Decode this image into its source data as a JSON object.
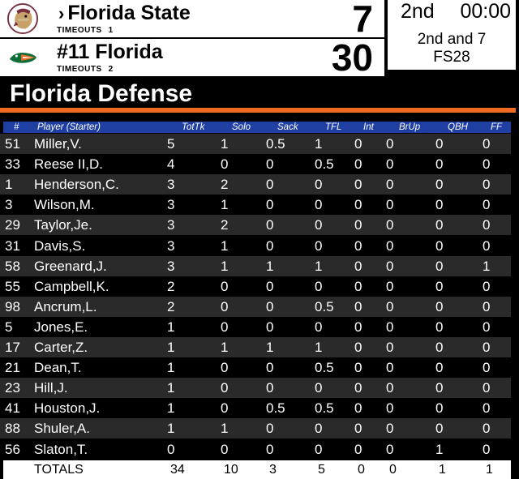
{
  "scoreboard": {
    "home": {
      "possession_icon": "chevron-right-icon",
      "possession_glyph": "›",
      "name": "Florida State",
      "timeouts_label": "TIMEOUTS",
      "timeouts": "1",
      "score": "7",
      "logo": "seminole-head-icon",
      "color": "#782f40"
    },
    "away": {
      "name": "#11 Florida",
      "timeouts_label": "TIMEOUTS",
      "timeouts": "2",
      "score": "30",
      "logo": "gator-icon",
      "color": "#0f6d3a"
    },
    "quarter": "2nd",
    "clock": "00:00",
    "down_distance": "2nd and 7",
    "spot": "FS28"
  },
  "section_title": "Florida Defense",
  "colors": {
    "accent_rule": "#ef6a23",
    "header_bar": "#1f3fa3",
    "alt_row": "#2a2a2a"
  },
  "table": {
    "headers": {
      "num": "#",
      "player": "Player (Starter)",
      "tottk": "TotTk",
      "solo": "Solo",
      "sack": "Sack",
      "tfl": "TFL",
      "int": "Int",
      "brup": "BrUp",
      "qbh": "QBH",
      "ff": "FF"
    },
    "rows": [
      {
        "num": "51",
        "name": "Miller,V.",
        "tottk": "5",
        "solo": "1",
        "sack": "0.5",
        "tfl": "1",
        "int": "0",
        "brup": "0",
        "qbh": "0",
        "ff": "0"
      },
      {
        "num": "33",
        "name": "Reese II,D.",
        "tottk": "4",
        "solo": "0",
        "sack": "0",
        "tfl": "0.5",
        "int": "0",
        "brup": "0",
        "qbh": "0",
        "ff": "0"
      },
      {
        "num": "1",
        "name": "Henderson,C.",
        "tottk": "3",
        "solo": "2",
        "sack": "0",
        "tfl": "0",
        "int": "0",
        "brup": "0",
        "qbh": "0",
        "ff": "0"
      },
      {
        "num": "3",
        "name": "Wilson,M.",
        "tottk": "3",
        "solo": "1",
        "sack": "0",
        "tfl": "0",
        "int": "0",
        "brup": "0",
        "qbh": "0",
        "ff": "0"
      },
      {
        "num": "29",
        "name": "Taylor,Je.",
        "tottk": "3",
        "solo": "2",
        "sack": "0",
        "tfl": "0",
        "int": "0",
        "brup": "0",
        "qbh": "0",
        "ff": "0"
      },
      {
        "num": "31",
        "name": "Davis,S.",
        "tottk": "3",
        "solo": "1",
        "sack": "0",
        "tfl": "0",
        "int": "0",
        "brup": "0",
        "qbh": "0",
        "ff": "0"
      },
      {
        "num": "58",
        "name": "Greenard,J.",
        "tottk": "3",
        "solo": "1",
        "sack": "1",
        "tfl": "1",
        "int": "0",
        "brup": "0",
        "qbh": "0",
        "ff": "1"
      },
      {
        "num": "55",
        "name": "Campbell,K.",
        "tottk": "2",
        "solo": "0",
        "sack": "0",
        "tfl": "0",
        "int": "0",
        "brup": "0",
        "qbh": "0",
        "ff": "0"
      },
      {
        "num": "98",
        "name": "Ancrum,L.",
        "tottk": "2",
        "solo": "0",
        "sack": "0",
        "tfl": "0.5",
        "int": "0",
        "brup": "0",
        "qbh": "0",
        "ff": "0"
      },
      {
        "num": "5",
        "name": "Jones,E.",
        "tottk": "1",
        "solo": "0",
        "sack": "0",
        "tfl": "0",
        "int": "0",
        "brup": "0",
        "qbh": "0",
        "ff": "0"
      },
      {
        "num": "17",
        "name": "Carter,Z.",
        "tottk": "1",
        "solo": "1",
        "sack": "1",
        "tfl": "1",
        "int": "0",
        "brup": "0",
        "qbh": "0",
        "ff": "0"
      },
      {
        "num": "21",
        "name": "Dean,T.",
        "tottk": "1",
        "solo": "0",
        "sack": "0",
        "tfl": "0.5",
        "int": "0",
        "brup": "0",
        "qbh": "0",
        "ff": "0"
      },
      {
        "num": "23",
        "name": "Hill,J.",
        "tottk": "1",
        "solo": "0",
        "sack": "0",
        "tfl": "0",
        "int": "0",
        "brup": "0",
        "qbh": "0",
        "ff": "0"
      },
      {
        "num": "41",
        "name": "Houston,J.",
        "tottk": "1",
        "solo": "0",
        "sack": "0.5",
        "tfl": "0.5",
        "int": "0",
        "brup": "0",
        "qbh": "0",
        "ff": "0"
      },
      {
        "num": "88",
        "name": "Shuler,A.",
        "tottk": "1",
        "solo": "1",
        "sack": "0",
        "tfl": "0",
        "int": "0",
        "brup": "0",
        "qbh": "0",
        "ff": "0"
      },
      {
        "num": "56",
        "name": "Slaton,T.",
        "tottk": "0",
        "solo": "0",
        "sack": "0",
        "tfl": "0",
        "int": "0",
        "brup": "0",
        "qbh": "1",
        "ff": "0"
      }
    ],
    "totals": {
      "label": "TOTALS",
      "tottk": "34",
      "solo": "10",
      "sack": "3",
      "tfl": "5",
      "int": "0",
      "brup": "0",
      "qbh": "1",
      "ff": "1"
    }
  }
}
